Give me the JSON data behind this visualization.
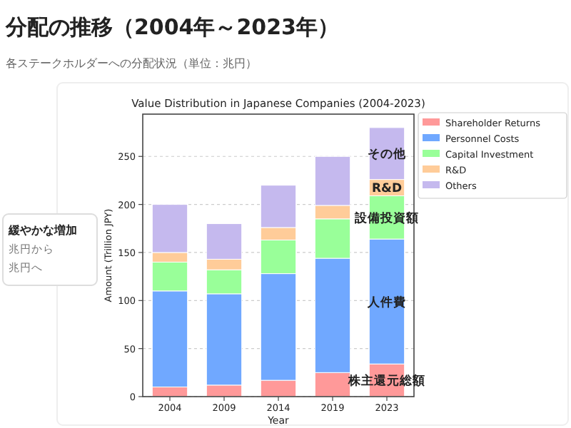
{
  "chart_data": {
    "type": "bar",
    "stacked": true,
    "title": "分配の推移（2004年～2023年）",
    "subtitle": "各ステークホルダーへの分配状況（単位：兆円）",
    "categories": [
      "2004",
      "2009",
      "2014",
      "2019",
      "2023"
    ],
    "series": [
      {
        "name": "Shareholder Returns",
        "color": "#ff9999",
        "values": [
          10,
          12,
          17,
          25,
          34
        ]
      },
      {
        "name": "Personnel Costs",
        "color": "#70a8ff",
        "values": [
          100,
          95,
          111,
          119,
          130
        ]
      },
      {
        "name": "Capital Investment",
        "color": "#99ff99",
        "values": [
          30,
          25,
          35,
          41,
          45
        ]
      },
      {
        "name": "R&D",
        "color": "#ffcc99",
        "values": [
          10,
          11,
          13,
          14,
          17
        ]
      },
      {
        "name": "Others",
        "color": "#c5b9ee",
        "values": [
          50,
          37,
          44,
          51,
          54
        ]
      }
    ],
    "ylim": [
      0,
      294
    ],
    "yticks": [
      0,
      50,
      100,
      150,
      200,
      250
    ],
    "xlabel": "Year",
    "ylabel": "Amount (Trillion JPY)",
    "grid": "y",
    "legend": "top right",
    "annotations": [
      "Value Distribution in Japanese Companies (2004-2023)",
      "その他",
      "R&D",
      "設備投資額",
      "人件費",
      "株主還元総額",
      "緩やかな増加",
      "兆円から",
      "兆円へ"
    ]
  }
}
